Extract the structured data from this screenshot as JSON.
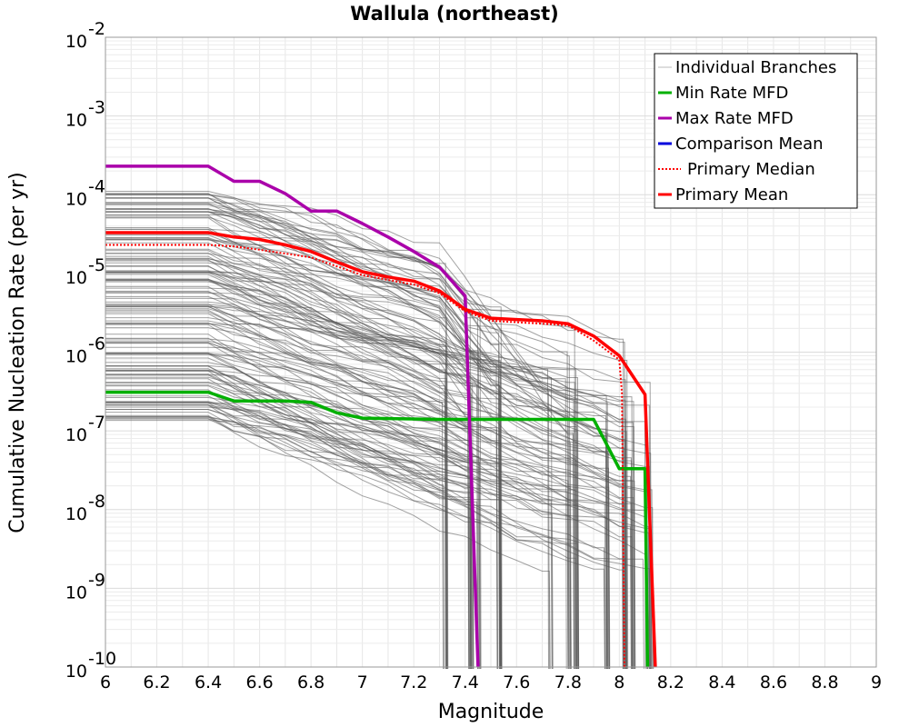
{
  "chart_data": {
    "type": "line",
    "title": "Wallula (northeast)",
    "xlabel": "Magnitude",
    "ylabel": "Cumulative Nucleation Rate (per yr)",
    "xlim": [
      6,
      9
    ],
    "ylim": [
      1e-10,
      0.01
    ],
    "y_scale": "log",
    "grid": true,
    "legend_placement": "top-right",
    "x_ticks": [
      "6",
      "6.2",
      "6.4",
      "6.6",
      "6.8",
      "7",
      "7.2",
      "7.4",
      "7.6",
      "7.8",
      "8",
      "8.2",
      "8.4",
      "8.6",
      "8.8",
      "9"
    ],
    "y_ticks": [
      {
        "base": "10",
        "exp": "-10",
        "value": 1e-10
      },
      {
        "base": "10",
        "exp": "-9",
        "value": 1e-09
      },
      {
        "base": "10",
        "exp": "-8",
        "value": 1e-08
      },
      {
        "base": "10",
        "exp": "-7",
        "value": 1e-07
      },
      {
        "base": "10",
        "exp": "-6",
        "value": 1e-06
      },
      {
        "base": "10",
        "exp": "-5",
        "value": 1e-05
      },
      {
        "base": "10",
        "exp": "-4",
        "value": 0.0001
      },
      {
        "base": "10",
        "exp": "-3",
        "value": 0.001
      },
      {
        "base": "10",
        "exp": "-2",
        "value": 0.01
      }
    ],
    "series": [
      {
        "name": "Min Rate MFD",
        "color": "#00b000",
        "style": "solid",
        "x": [
          6.0,
          6.4,
          6.5,
          6.7,
          6.8,
          6.9,
          7.0,
          7.3,
          7.4,
          7.5,
          7.9,
          8.0,
          8.1,
          8.11
        ],
        "y": [
          3.1e-07,
          3.1e-07,
          2.4e-07,
          2.4e-07,
          2.3e-07,
          1.7e-07,
          1.45e-07,
          1.4e-07,
          1.4e-07,
          1.4e-07,
          1.4e-07,
          3.3e-08,
          3.3e-08,
          1e-10
        ]
      },
      {
        "name": "Max Rate MFD",
        "color": "#aa00aa",
        "style": "solid",
        "x": [
          6.0,
          6.4,
          6.5,
          6.6,
          6.7,
          6.8,
          6.9,
          7.0,
          7.1,
          7.2,
          7.3,
          7.4,
          7.45
        ],
        "y": [
          0.00023,
          0.00023,
          0.000148,
          0.000148,
          0.000103,
          6.2e-05,
          6.2e-05,
          4.3e-05,
          2.9e-05,
          1.9e-05,
          1.2e-05,
          5.2e-06,
          1e-10
        ]
      },
      {
        "name": "Comparison Mean",
        "color": "#0000dd",
        "style": "solid",
        "x": [],
        "y": []
      },
      {
        "name": "Primary Median",
        "color": "#ff0000",
        "style": "dotted",
        "x": [
          6.0,
          6.4,
          6.5,
          6.6,
          6.8,
          7.0,
          7.2,
          7.3,
          7.4,
          7.5,
          7.6,
          7.8,
          7.9,
          8.0,
          8.01,
          8.02
        ],
        "y": [
          2.3e-05,
          2.3e-05,
          2.2e-05,
          2e-05,
          1.6e-05,
          9.5e-06,
          7.2e-06,
          5.6e-06,
          3.3e-06,
          2.5e-06,
          2.4e-06,
          2.2e-06,
          1.4e-06,
          8e-07,
          3e-07,
          1e-10
        ]
      },
      {
        "name": "Primary Mean",
        "color": "#ff0000",
        "style": "solid",
        "x": [
          6.0,
          6.4,
          6.5,
          6.6,
          6.7,
          6.8,
          6.9,
          7.0,
          7.1,
          7.2,
          7.3,
          7.4,
          7.5,
          7.6,
          7.7,
          7.8,
          7.9,
          8.0,
          8.1,
          8.14
        ],
        "y": [
          3.3e-05,
          3.3e-05,
          2.9e-05,
          2.7e-05,
          2.3e-05,
          1.9e-05,
          1.4e-05,
          1.05e-05,
          9e-06,
          8e-06,
          6e-06,
          3.5e-06,
          2.7e-06,
          2.6e-06,
          2.5e-06,
          2.3e-06,
          1.6e-06,
          9e-07,
          2.9e-07,
          1e-10
        ]
      }
    ],
    "legend": [
      {
        "label": "Individual Branches",
        "color": "#bbbbbb",
        "style": "thin"
      },
      {
        "label": "Min Rate MFD",
        "color": "#00b000",
        "style": "solid"
      },
      {
        "label": "Max Rate MFD",
        "color": "#aa00aa",
        "style": "solid"
      },
      {
        "label": "Comparison Mean",
        "color": "#0000dd",
        "style": "solid"
      },
      {
        "label": "Primary Median",
        "color": "#ff0000",
        "style": "dotted"
      },
      {
        "label": "Primary Mean",
        "color": "#ff0000",
        "style": "solid"
      }
    ],
    "branch_color": "#555555"
  }
}
